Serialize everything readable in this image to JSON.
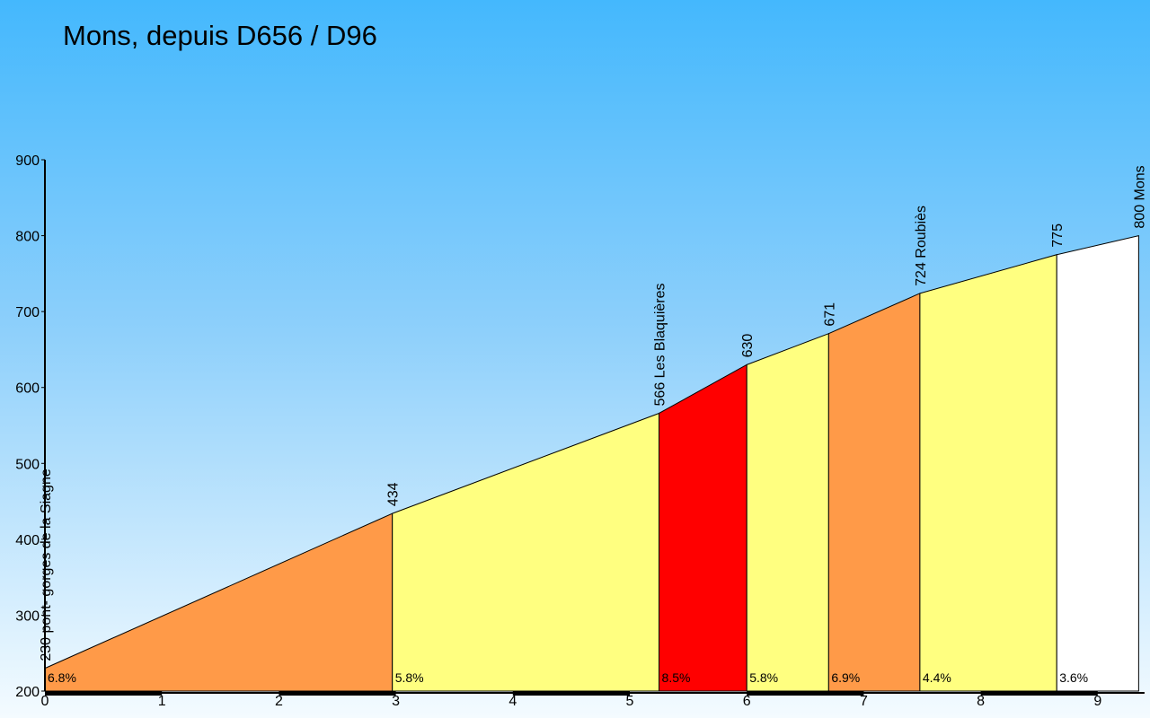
{
  "chart_data": {
    "type": "area",
    "title": "Mons, depuis D656 / D96",
    "xlabel": "",
    "ylabel": "",
    "xlim": [
      0,
      9.4
    ],
    "ylim": [
      200,
      900
    ],
    "x_ticks": [
      "0",
      "1",
      "2",
      "3",
      "4",
      "5",
      "6",
      "7",
      "8",
      "9"
    ],
    "y_ticks": [
      "200",
      "300",
      "400",
      "500",
      "600",
      "700",
      "800",
      "900"
    ],
    "profile_points": [
      {
        "x": 0,
        "y": 230,
        "label": "230 pont- gorges de la Siagne"
      },
      {
        "x": 2.97,
        "y": 434,
        "label": "434"
      },
      {
        "x": 5.25,
        "y": 566,
        "label": "566 Les Blaquières"
      },
      {
        "x": 6.0,
        "y": 630,
        "label": "630"
      },
      {
        "x": 6.7,
        "y": 671,
        "label": "671"
      },
      {
        "x": 7.48,
        "y": 724,
        "label": "724 Roubiès"
      },
      {
        "x": 8.65,
        "y": 775,
        "label": "775"
      },
      {
        "x": 9.35,
        "y": 800,
        "label": "800 Mons"
      }
    ],
    "segments": [
      {
        "grade": "6.8%",
        "color": "#ff9a48"
      },
      {
        "grade": "5.8%",
        "color": "#ffff80"
      },
      {
        "grade": "8.5%",
        "color": "#ff0000"
      },
      {
        "grade": "5.8%",
        "color": "#ffff80"
      },
      {
        "grade": "6.9%",
        "color": "#ff9a48"
      },
      {
        "grade": "4.4%",
        "color": "#ffff80"
      },
      {
        "grade": "3.6%",
        "color": "#ffffff"
      }
    ]
  }
}
